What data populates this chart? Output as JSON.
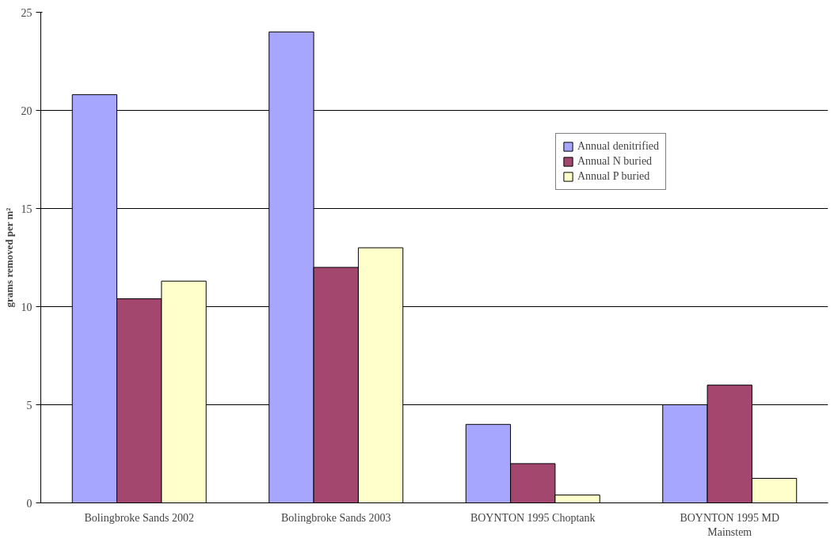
{
  "chart_data": {
    "type": "bar",
    "ylabel": "grams removed per m²",
    "categories": [
      "Bolingbroke Sands 2002",
      "Bolingbroke Sands 2003",
      "BOYNTON 1995 Choptank",
      "BOYNTON 1995 MD Mainstem"
    ],
    "series": [
      {
        "name": "Annual denitrified",
        "color": "#a6a6ff",
        "values": [
          20.8,
          24,
          4,
          5
        ]
      },
      {
        "name": "Annual N buried",
        "color": "#a3476f",
        "values": [
          10.4,
          12,
          2,
          6
        ]
      },
      {
        "name": "Annual P buried",
        "color": "#ffffcc",
        "values": [
          11.3,
          13,
          0.4,
          1.25
        ]
      }
    ],
    "ylim": [
      0,
      25
    ],
    "yticks": [
      0,
      5,
      10,
      15,
      20,
      25
    ],
    "grid": "y",
    "legend": "top right"
  }
}
